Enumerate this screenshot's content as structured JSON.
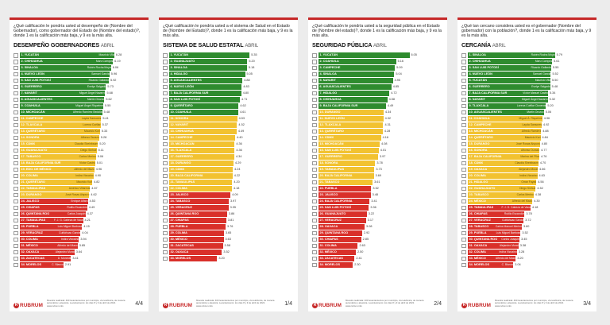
{
  "footer": {
    "brand": "RUBRUM",
    "note": "Muestra realizada: 400 levantamientos por municipio, vía telefónica, de manera automática y aleatoria. Levantamiento: los días 8 y 9 de abril de 2022. www.rubrum.info"
  },
  "colors": {
    "green": "#2e8b2e",
    "yellow": "#f2c230",
    "red": "#d9302a"
  },
  "chart_data": [
    {
      "type": "bar",
      "page": "4/4",
      "question": "¿Qué calificación le pondría usted al desempeño de (Nombre del Gobernador), como gobernador del Estado de (Nombre del estado)?, donde 1 es la calificación más baja, y 9 es la más alta.",
      "title": "DESEMPEÑO GOBERNADORES",
      "period": "ABRIL",
      "xlim": [
        0,
        9
      ],
      "rows": [
        {
          "state": "1. YUCATÁN",
          "gov": "Mauricio Vila",
          "value": 6.28,
          "color": "green"
        },
        {
          "state": "2. CHIHUAHUA",
          "gov": "Maru Campos",
          "value": 6.19,
          "color": "green"
        },
        {
          "state": "3. SINALOA",
          "gov": "Rubén Rocha Moya",
          "value": 6.06,
          "color": "green"
        },
        {
          "state": "4. NUEVO LEÓN",
          "gov": "Samuel García",
          "value": 5.96,
          "color": "green"
        },
        {
          "state": "5. SAN LUIS POTOSÍ",
          "gov": "Ricardo Gallardo",
          "value": 5.92,
          "color": "green"
        },
        {
          "state": "6. GUERRERO",
          "gov": "Evelyn Salgado",
          "value": 5.73,
          "color": "green"
        },
        {
          "state": "7. NAYARIT",
          "gov": "Miguel Ángel Navarro",
          "value": 5.68,
          "color": "green"
        },
        {
          "state": "8. AGUASCALIENTES",
          "gov": "Martín Orozco",
          "value": 5.62,
          "color": "green"
        },
        {
          "state": "9. COAHUILA",
          "gov": "Miguel Ángel Riquelme",
          "value": 5.55,
          "color": "green"
        },
        {
          "state": "10. MICHOACÁN",
          "gov": "Alfredo Ramírez Bedolla",
          "value": 5.48,
          "color": "green"
        },
        {
          "state": "11. CAMPECHE",
          "gov": "Layda Sansores",
          "value": 5.41,
          "color": "yellow"
        },
        {
          "state": "12. TLAXCALA",
          "gov": "Lorena Cuéllar",
          "value": 5.37,
          "color": "yellow"
        },
        {
          "state": "13. QUERÉTARO",
          "gov": "Mauricio Kuri",
          "value": 5.33,
          "color": "yellow"
        },
        {
          "state": "14. SONORA",
          "gov": "Alfonso Durazo",
          "value": 5.28,
          "color": "yellow"
        },
        {
          "state": "15. CDMX",
          "gov": "Claudia Sheinbaum",
          "value": 5.2,
          "color": "yellow"
        },
        {
          "state": "16. GUANAJUATO",
          "gov": "Diego Sinhue",
          "value": 5.11,
          "color": "yellow"
        },
        {
          "state": "17. TABASCO",
          "gov": "Carlos Merino",
          "value": 5.06,
          "color": "yellow"
        },
        {
          "state": "18. BAJA CALIFORNIA SUR",
          "gov": "Víctor Castro",
          "value": 5.01,
          "color": "yellow"
        },
        {
          "state": "19. EDO. DE MÉXICO",
          "gov": "Alfredo del Mazo",
          "value": 4.96,
          "color": "yellow"
        },
        {
          "state": "20. COLIMA",
          "gov": "Indira Vizcaíno",
          "value": 4.9,
          "color": "yellow"
        },
        {
          "state": "21. QUERÉTARO",
          "gov": "Mauricio Kuri",
          "value": 4.82,
          "color": "yellow"
        },
        {
          "state": "22. TAMAULIPAS",
          "gov": "Américo Villarreal",
          "value": 4.67,
          "color": "yellow"
        },
        {
          "state": "23. DURANGO",
          "gov": "José Rosas Aispuro",
          "value": 4.62,
          "color": "yellow"
        },
        {
          "state": "24. JALISCO",
          "gov": "Enrique Alfaro",
          "value": 4.53,
          "color": "red"
        },
        {
          "state": "25. CHIAPAS",
          "gov": "Rutilio Escandón",
          "value": 4.49,
          "color": "red"
        },
        {
          "state": "26. QUINTANA ROO",
          "gov": "Carlos Joaquín",
          "value": 4.37,
          "color": "red"
        },
        {
          "state": "27. TAMAULIPAS",
          "gov": "F. J. G. Cabeza de Vaca",
          "value": 4.21,
          "color": "red"
        },
        {
          "state": "28. PUEBLA",
          "gov": "Luis Miguel Barbosa",
          "value": 4.15,
          "color": "red"
        },
        {
          "state": "29. VERACRUZ",
          "gov": "Cuitláhuac García",
          "value": 4.04,
          "color": "red"
        },
        {
          "state": "30. COLIMA",
          "gov": "Indira Vizcaíno",
          "value": 3.94,
          "color": "red"
        },
        {
          "state": "31. MÉXICO",
          "gov": "Alfredo del Mazo",
          "value": 3.85,
          "color": "red"
        },
        {
          "state": "32. OAXACA",
          "gov": "Alejandro Murat",
          "value": 3.64,
          "color": "red"
        },
        {
          "state": "33. ZACATECAS",
          "gov": "D. Monreal",
          "value": 3.41,
          "color": "red"
        },
        {
          "state": "34. MORELOS",
          "gov": "C. Blanco",
          "value": 2.91,
          "color": "red"
        }
      ]
    },
    {
      "type": "bar",
      "page": "1/4",
      "question": "¿Qué calificación le pondría usted a el sistema de Salud en el Estado de (Nombre del Estado)?, donde 1 es la calificación más baja, y 9 es la más alta.",
      "title": "SISTEMA DE SALUD ESTATAL",
      "period": "ABRIL",
      "xlim": [
        0,
        9
      ],
      "rows": [
        {
          "state": "1. YUCATÁN",
          "value": 5.35,
          "color": "green"
        },
        {
          "state": "2. GUANAJUATO",
          "value": 5.2,
          "color": "green"
        },
        {
          "state": "3. SINALOA",
          "value": 5.18,
          "color": "green"
        },
        {
          "state": "4. HIDALGO",
          "value": 5.05,
          "color": "green"
        },
        {
          "state": "5. AGUASCALIENTES",
          "value": 4.88,
          "color": "green"
        },
        {
          "state": "6. NUEVO LEÓN",
          "value": 4.83,
          "color": "green"
        },
        {
          "state": "7. BAJA CALIFORNIA SUR",
          "value": 4.8,
          "color": "green"
        },
        {
          "state": "8. SAN LUIS POTOSÍ",
          "value": 4.71,
          "color": "green"
        },
        {
          "state": "9. QUERÉTARO",
          "value": 4.62,
          "color": "green"
        },
        {
          "state": "10. COAHUILA",
          "value": 4.61,
          "color": "green"
        },
        {
          "state": "11. SONORA",
          "value": 4.53,
          "color": "yellow"
        },
        {
          "state": "12. NAYARIT",
          "value": 4.52,
          "color": "yellow"
        },
        {
          "state": "13. CHIHUAHUA",
          "value": 4.49,
          "color": "yellow"
        },
        {
          "state": "14. CAMPECHE",
          "value": 4.4,
          "color": "yellow"
        },
        {
          "state": "15. MICHOACÁN",
          "value": 4.36,
          "color": "yellow"
        },
        {
          "state": "16. TLAXCALA",
          "value": 4.36,
          "color": "yellow"
        },
        {
          "state": "17. GUERRERO",
          "value": 4.34,
          "color": "yellow"
        },
        {
          "state": "18. DURANGO",
          "value": 4.29,
          "color": "yellow"
        },
        {
          "state": "19. CDMX",
          "value": 4.24,
          "color": "yellow"
        },
        {
          "state": "20. BAJA CALIFORNIA",
          "value": 4.22,
          "color": "yellow"
        },
        {
          "state": "21. TAMAULIPAS",
          "value": 4.2,
          "color": "yellow"
        },
        {
          "state": "22. COLIMA",
          "value": 4.18,
          "color": "yellow"
        },
        {
          "state": "23. JALISCO",
          "value": 4.09,
          "color": "red"
        },
        {
          "state": "24. TABASCO",
          "value": 3.97,
          "color": "red"
        },
        {
          "state": "25. VERACRUZ",
          "value": 3.95,
          "color": "red"
        },
        {
          "state": "26. QUINTANA ROO",
          "value": 3.86,
          "color": "red"
        },
        {
          "state": "27. CHIAPAS",
          "value": 3.81,
          "color": "red"
        },
        {
          "state": "28. PUEBLA",
          "value": 3.76,
          "color": "red"
        },
        {
          "state": "29. COLIMA",
          "value": 3.65,
          "color": "red"
        },
        {
          "state": "30. MÉXICO",
          "value": 3.63,
          "color": "red"
        },
        {
          "state": "31. ZACATECAS",
          "value": 3.58,
          "color": "red"
        },
        {
          "state": "32. OAXACA",
          "value": 3.52,
          "color": "red"
        },
        {
          "state": "33. MORELOS",
          "value": 3.2,
          "color": "red"
        }
      ]
    },
    {
      "type": "bar",
      "page": "2/4",
      "question": "¿Qué calificación le pondría usted a la seguridad pública en el Estado de (Nombre del estado)?, donde 1 es la calificación más baja, y 9 es la más alta.",
      "title": "SEGURIDAD PÚBLICA",
      "period": "ABRIL",
      "xlim": [
        0,
        9
      ],
      "rows": [
        {
          "state": "1. YUCATÁN",
          "value": 6.05,
          "color": "green"
        },
        {
          "state": "2. COAHUILA",
          "value": 5.16,
          "color": "green"
        },
        {
          "state": "3. CAMPECHE",
          "value": 5.09,
          "color": "green"
        },
        {
          "state": "4. SINALOA",
          "value": 5.04,
          "color": "green"
        },
        {
          "state": "5. NAYARIT",
          "value": 4.95,
          "color": "green"
        },
        {
          "state": "6. AGUASCALIENTES",
          "value": 4.85,
          "color": "green"
        },
        {
          "state": "7. HIDALGO",
          "value": 4.72,
          "color": "green"
        },
        {
          "state": "8. CHIHUAHUA",
          "value": 4.58,
          "color": "green"
        },
        {
          "state": "9. BAJA CALIFORNIA SUR",
          "value": 4.49,
          "color": "green"
        },
        {
          "state": "10. DURANGO",
          "value": 4.34,
          "color": "yellow"
        },
        {
          "state": "11. NUEVO LEÓN",
          "value": 4.32,
          "color": "yellow"
        },
        {
          "state": "12. TLAXCALA",
          "value": 4.31,
          "color": "yellow"
        },
        {
          "state": "13. QUERÉTARO",
          "value": 4.28,
          "color": "yellow"
        },
        {
          "state": "14. CDMX",
          "value": 4.16,
          "color": "yellow"
        },
        {
          "state": "15. MICHOACÁN",
          "value": 4.08,
          "color": "yellow"
        },
        {
          "state": "16. SAN LUIS POTOSÍ",
          "value": 4.01,
          "color": "yellow"
        },
        {
          "state": "17. GUERRERO",
          "value": 3.97,
          "color": "yellow"
        },
        {
          "state": "18. SONORA",
          "value": 3.78,
          "color": "yellow"
        },
        {
          "state": "19. TAMAULIPAS",
          "value": 3.73,
          "color": "yellow"
        },
        {
          "state": "20. BAJA CALIFORNIA",
          "value": 3.69,
          "color": "yellow"
        },
        {
          "state": "21. TABASCO",
          "value": 3.61,
          "color": "yellow"
        },
        {
          "state": "22. PUEBLA",
          "value": 3.52,
          "color": "red"
        },
        {
          "state": "23. JALISCO",
          "value": 3.48,
          "color": "red"
        },
        {
          "state": "24. BAJA CALIFORNIA",
          "value": 3.41,
          "color": "red"
        },
        {
          "state": "25. SAN LUIS POTOSÍ",
          "value": 3.36,
          "color": "red"
        },
        {
          "state": "26. GUANAJUATO",
          "value": 3.22,
          "color": "red"
        },
        {
          "state": "27. VERACRUZ",
          "value": 3.17,
          "color": "red"
        },
        {
          "state": "28. OAXACA",
          "value": 3.08,
          "color": "red"
        },
        {
          "state": "29. QUINTANA ROO",
          "value": 2.92,
          "color": "red"
        },
        {
          "state": "30. CHIAPAS",
          "value": 2.85,
          "color": "red"
        },
        {
          "state": "31. COLIMA",
          "value": 2.63,
          "color": "red"
        },
        {
          "state": "32. MÉXICO",
          "value": 2.5,
          "color": "red"
        },
        {
          "state": "33. ZACATECAS",
          "value": 2.41,
          "color": "red"
        },
        {
          "state": "34. MORELOS",
          "value": 2.3,
          "color": "red"
        }
      ]
    },
    {
      "type": "bar",
      "page": "3/4",
      "question": "¿Qué tan cercano considera usted es el gobernador (Nombre del gobernador) con la población?, donde 1 es la calificación más baja, y 9 es la más alta.",
      "title": "CERCANÍA",
      "period": "ABRIL",
      "xlim": [
        0,
        9
      ],
      "rows": [
        {
          "state": "1. SINALOA",
          "gov": "Rubén Rocha Moya",
          "value": 5.79,
          "color": "green"
        },
        {
          "state": "2. CHIHUAHUA",
          "gov": "Maru Campos",
          "value": 5.61,
          "color": "green"
        },
        {
          "state": "3. SAN LUIS POTOSÍ",
          "gov": "Ricardo Gallardo",
          "value": 5.55,
          "color": "green"
        },
        {
          "state": "4. NUEVO LEÓN",
          "gov": "Samuel García",
          "value": 5.52,
          "color": "green"
        },
        {
          "state": "5. YUCATÁN",
          "gov": "Mauricio Vila",
          "value": 5.5,
          "color": "green"
        },
        {
          "state": "6. GUERRERO",
          "gov": "Evelyn Salgado",
          "value": 5.48,
          "color": "green"
        },
        {
          "state": "7. BAJA CALIFORNIA SUR",
          "gov": "Víctor Manuel Castro",
          "value": 5.34,
          "color": "green"
        },
        {
          "state": "8. NAYARIT",
          "gov": "Miguel Ángel Navarro",
          "value": 5.32,
          "color": "green"
        },
        {
          "state": "9. TLAXCALA",
          "gov": "Lorena Cuéllar Cisneros",
          "value": 5.2,
          "color": "green"
        },
        {
          "state": "10. AGUASCALIENTES",
          "gov": "Martín Orozco",
          "value": 5.06,
          "color": "green"
        },
        {
          "state": "11. COAHUILA",
          "gov": "Miguel Á. Riquelme",
          "value": 4.96,
          "color": "yellow"
        },
        {
          "state": "12. CAMPECHE",
          "gov": "Layda Sansores",
          "value": 4.92,
          "color": "yellow"
        },
        {
          "state": "13. MICHOACÁN",
          "gov": "Alfredo Ramírez",
          "value": 4.88,
          "color": "yellow"
        },
        {
          "state": "14. QUERÉTARO",
          "gov": "Mauricio Kuri",
          "value": 4.84,
          "color": "yellow"
        },
        {
          "state": "15. DURANGO",
          "gov": "José Rosas Aispuro",
          "value": 4.8,
          "color": "yellow"
        },
        {
          "state": "16. SONORA",
          "gov": "Alfonso Durazo",
          "value": 4.77,
          "color": "yellow"
        },
        {
          "state": "17. BAJA CALIFORNIA",
          "gov": "Marina del Pilar",
          "value": 4.76,
          "color": "yellow"
        },
        {
          "state": "18. CDMX",
          "gov": "Claudia Sheinbaum",
          "value": 4.7,
          "color": "yellow"
        },
        {
          "state": "19. OAXACA",
          "gov": "Alejandro Murat",
          "value": 4.66,
          "color": "yellow"
        },
        {
          "state": "20. COLIMA",
          "gov": "Indira Vizcaíno",
          "value": 4.63,
          "color": "yellow"
        },
        {
          "state": "21. HIDALGO",
          "gov": "Omar Fayad",
          "value": 4.56,
          "color": "yellow"
        },
        {
          "state": "22. GUANAJUATO",
          "gov": "Diego Sinhue",
          "value": 4.52,
          "color": "yellow"
        },
        {
          "state": "23. TABASCO",
          "gov": "Carlos Merino",
          "value": 4.38,
          "color": "yellow"
        },
        {
          "state": "24. MÉXICO",
          "gov": "Alfredo del Mazo",
          "value": 4.3,
          "color": "yellow"
        },
        {
          "state": "25. TAMAULIPAS",
          "gov": "F. J. G. Cabeza de Vaca",
          "value": 4.18,
          "color": "red"
        },
        {
          "state": "26. CHIAPAS",
          "gov": "Rutilio Escandón",
          "value": 3.78,
          "color": "red"
        },
        {
          "state": "27. VERACRUZ",
          "gov": "Cuitláhuac García",
          "value": 3.72,
          "color": "red"
        },
        {
          "state": "28. TABASCO",
          "gov": "Carlos Manuel Merino",
          "value": 3.6,
          "color": "red"
        },
        {
          "state": "29. PUEBLA",
          "gov": "Luis Miguel Barbosa",
          "value": 3.52,
          "color": "red"
        },
        {
          "state": "30. QUINTANA ROO",
          "gov": "Carlos Joaquín",
          "value": 3.45,
          "color": "red"
        },
        {
          "state": "31. OAXACA",
          "gov": "Alejandro Murat",
          "value": 3.38,
          "color": "red"
        },
        {
          "state": "32. COLIMA",
          "gov": "Indira Vizcaíno",
          "value": 3.28,
          "color": "red"
        },
        {
          "state": "33. MÉXICO",
          "gov": "Alfredo del Mazo",
          "value": 3.2,
          "color": "red"
        },
        {
          "state": "34. MORELOS",
          "gov": "C. Blanco",
          "value": 3.04,
          "color": "red"
        }
      ]
    }
  ]
}
